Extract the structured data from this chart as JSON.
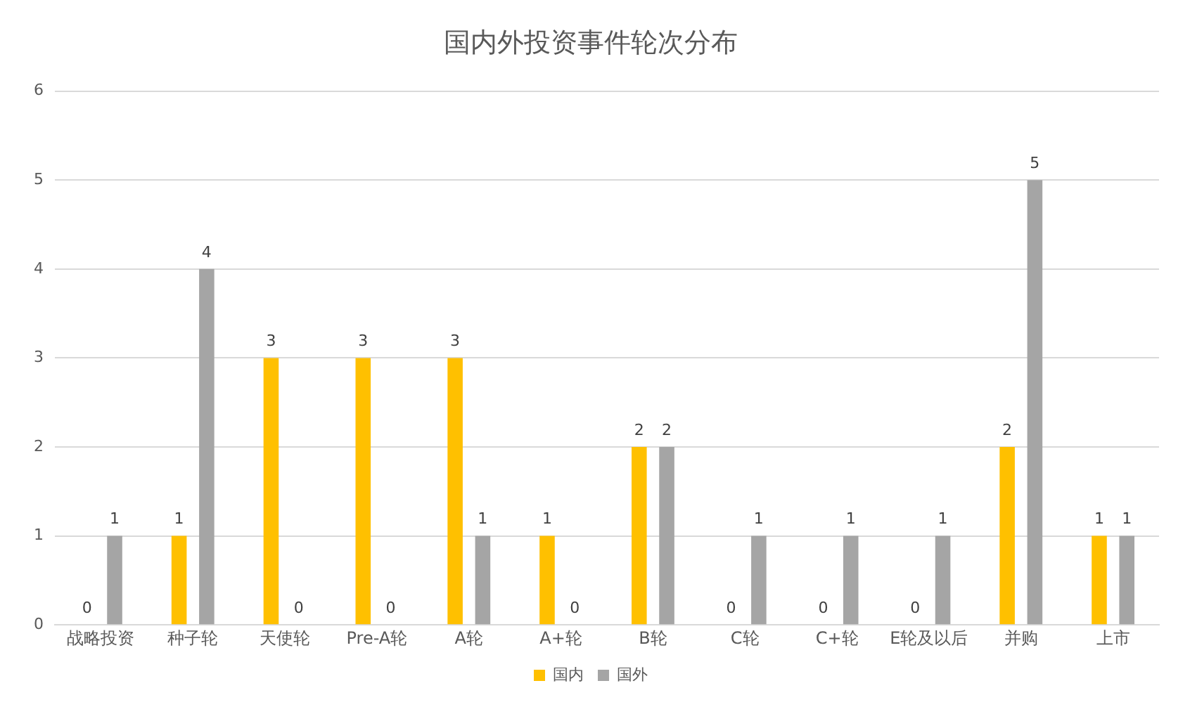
{
  "chart_data": {
    "type": "bar",
    "title": "国内外投资事件轮次分布",
    "categories": [
      "战略投资",
      "种子轮",
      "天使轮",
      "Pre-A轮",
      "A轮",
      "A+轮",
      "B轮",
      "C轮",
      "C+轮",
      "E轮及以后",
      "并购",
      "上市"
    ],
    "series": [
      {
        "name": "国内",
        "color": "#ffc000",
        "values": [
          0,
          1,
          3,
          3,
          3,
          1,
          2,
          0,
          0,
          0,
          2,
          1
        ]
      },
      {
        "name": "国外",
        "color": "#a5a5a5",
        "values": [
          1,
          4,
          0,
          0,
          1,
          0,
          2,
          1,
          1,
          1,
          5,
          1
        ]
      }
    ],
    "ylim": [
      0,
      6
    ],
    "yticks": [
      0,
      1,
      2,
      3,
      4,
      5,
      6
    ],
    "grid": "y",
    "legend": "bottom",
    "data_labels": true
  }
}
